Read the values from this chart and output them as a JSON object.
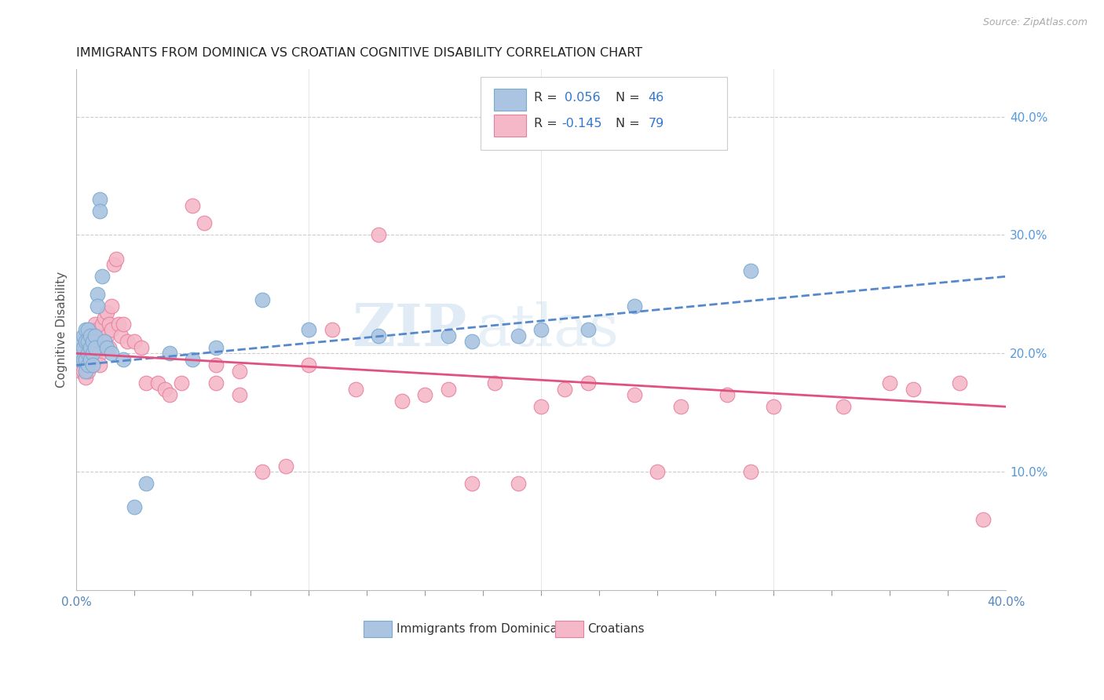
{
  "title": "IMMIGRANTS FROM DOMINICA VS CROATIAN COGNITIVE DISABILITY CORRELATION CHART",
  "source": "Source: ZipAtlas.com",
  "ylabel": "Cognitive Disability",
  "x_min": 0.0,
  "x_max": 0.4,
  "y_min": 0.0,
  "y_max": 0.44,
  "y_ticks_right": [
    0.1,
    0.2,
    0.3,
    0.4
  ],
  "y_tick_labels_right": [
    "10.0%",
    "20.0%",
    "30.0%",
    "40.0%"
  ],
  "series1_color": "#aac4e2",
  "series1_edge": "#7aaad0",
  "series2_color": "#f4b8c8",
  "series2_edge": "#e87fa0",
  "trendline1_color": "#5588cc",
  "trendline2_color": "#e05080",
  "watermark_zip": "ZIP",
  "watermark_atlas": "atlas",
  "series1_x": [
    0.001,
    0.002,
    0.002,
    0.003,
    0.003,
    0.003,
    0.004,
    0.004,
    0.004,
    0.004,
    0.005,
    0.005,
    0.005,
    0.005,
    0.006,
    0.006,
    0.006,
    0.007,
    0.007,
    0.007,
    0.008,
    0.008,
    0.009,
    0.009,
    0.01,
    0.01,
    0.011,
    0.012,
    0.013,
    0.015,
    0.02,
    0.025,
    0.03,
    0.04,
    0.05,
    0.06,
    0.08,
    0.1,
    0.13,
    0.16,
    0.2,
    0.24,
    0.29,
    0.17,
    0.19,
    0.22
  ],
  "series1_y": [
    0.195,
    0.21,
    0.2,
    0.215,
    0.205,
    0.195,
    0.22,
    0.21,
    0.195,
    0.185,
    0.22,
    0.21,
    0.2,
    0.19,
    0.215,
    0.205,
    0.195,
    0.21,
    0.2,
    0.19,
    0.215,
    0.205,
    0.25,
    0.24,
    0.33,
    0.32,
    0.265,
    0.21,
    0.205,
    0.2,
    0.195,
    0.07,
    0.09,
    0.2,
    0.195,
    0.205,
    0.245,
    0.22,
    0.215,
    0.215,
    0.22,
    0.24,
    0.27,
    0.21,
    0.215,
    0.22
  ],
  "series2_x": [
    0.001,
    0.002,
    0.002,
    0.003,
    0.003,
    0.004,
    0.004,
    0.005,
    0.005,
    0.005,
    0.006,
    0.006,
    0.006,
    0.007,
    0.007,
    0.007,
    0.008,
    0.008,
    0.008,
    0.009,
    0.009,
    0.01,
    0.01,
    0.01,
    0.011,
    0.011,
    0.012,
    0.012,
    0.013,
    0.013,
    0.014,
    0.014,
    0.015,
    0.015,
    0.016,
    0.017,
    0.018,
    0.019,
    0.02,
    0.022,
    0.025,
    0.028,
    0.03,
    0.035,
    0.038,
    0.04,
    0.045,
    0.05,
    0.055,
    0.06,
    0.07,
    0.08,
    0.09,
    0.1,
    0.11,
    0.12,
    0.13,
    0.14,
    0.15,
    0.16,
    0.18,
    0.2,
    0.22,
    0.24,
    0.26,
    0.28,
    0.3,
    0.33,
    0.36,
    0.38,
    0.35,
    0.39,
    0.21,
    0.25,
    0.29,
    0.17,
    0.19,
    0.06,
    0.07
  ],
  "series2_y": [
    0.19,
    0.2,
    0.185,
    0.205,
    0.185,
    0.195,
    0.18,
    0.21,
    0.195,
    0.185,
    0.215,
    0.2,
    0.19,
    0.22,
    0.205,
    0.19,
    0.225,
    0.21,
    0.195,
    0.22,
    0.205,
    0.215,
    0.2,
    0.19,
    0.225,
    0.205,
    0.23,
    0.21,
    0.235,
    0.215,
    0.225,
    0.205,
    0.24,
    0.22,
    0.275,
    0.28,
    0.225,
    0.215,
    0.225,
    0.21,
    0.21,
    0.205,
    0.175,
    0.175,
    0.17,
    0.165,
    0.175,
    0.325,
    0.31,
    0.175,
    0.165,
    0.1,
    0.105,
    0.19,
    0.22,
    0.17,
    0.3,
    0.16,
    0.165,
    0.17,
    0.175,
    0.155,
    0.175,
    0.165,
    0.155,
    0.165,
    0.155,
    0.155,
    0.17,
    0.175,
    0.175,
    0.06,
    0.17,
    0.1,
    0.1,
    0.09,
    0.09,
    0.19,
    0.185
  ],
  "trend1_x0": 0.0,
  "trend1_x1": 0.4,
  "trend1_y0": 0.19,
  "trend1_y1": 0.265,
  "trend2_x0": 0.0,
  "trend2_x1": 0.4,
  "trend2_y0": 0.2,
  "trend2_y1": 0.155
}
